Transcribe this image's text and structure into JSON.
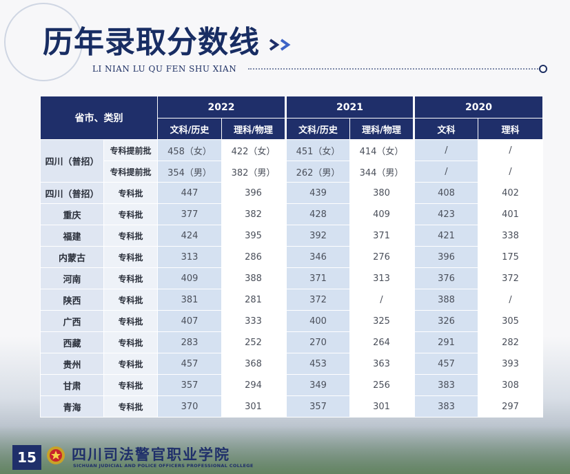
{
  "header": {
    "title": "历年录取分数线",
    "subtitle": "LI NIAN LU QU FEN SHU XIAN"
  },
  "table": {
    "corner_label": "省市、类别",
    "years": [
      "2022",
      "2021",
      "2020"
    ],
    "subheaders": [
      "文科/历史",
      "理科/物理",
      "文科/历史",
      "理科/物理",
      "文科",
      "理科"
    ],
    "group_province": "四川（普招）",
    "group_rows": [
      {
        "category": "专科提前批",
        "values": [
          "458（女）",
          "422（女）",
          "451（女）",
          "414（女）",
          "/",
          "/"
        ]
      },
      {
        "category": "专科提前批",
        "values": [
          "354（男）",
          "382（男）",
          "262（男）",
          "344（男）",
          "/",
          "/"
        ]
      }
    ],
    "rows": [
      {
        "province": "四川（普招）",
        "category": "专科批",
        "values": [
          "447",
          "396",
          "439",
          "380",
          "408",
          "402"
        ]
      },
      {
        "province": "重庆",
        "category": "专科批",
        "values": [
          "377",
          "382",
          "428",
          "409",
          "423",
          "401"
        ]
      },
      {
        "province": "福建",
        "category": "专科批",
        "values": [
          "424",
          "395",
          "392",
          "371",
          "421",
          "338"
        ]
      },
      {
        "province": "内蒙古",
        "category": "专科批",
        "values": [
          "313",
          "286",
          "346",
          "276",
          "396",
          "175"
        ]
      },
      {
        "province": "河南",
        "category": "专科批",
        "values": [
          "409",
          "388",
          "371",
          "313",
          "376",
          "372"
        ]
      },
      {
        "province": "陕西",
        "category": "专科批",
        "values": [
          "381",
          "281",
          "372",
          "/",
          "388",
          "/"
        ]
      },
      {
        "province": "广西",
        "category": "专科批",
        "values": [
          "407",
          "333",
          "400",
          "325",
          "326",
          "305"
        ]
      },
      {
        "province": "西藏",
        "category": "专科批",
        "values": [
          "283",
          "252",
          "270",
          "264",
          "291",
          "282"
        ]
      },
      {
        "province": "贵州",
        "category": "专科批",
        "values": [
          "457",
          "368",
          "453",
          "363",
          "457",
          "393"
        ]
      },
      {
        "province": "甘肃",
        "category": "专科批",
        "values": [
          "357",
          "294",
          "349",
          "256",
          "383",
          "308"
        ]
      },
      {
        "province": "青海",
        "category": "专科批",
        "values": [
          "370",
          "301",
          "357",
          "301",
          "383",
          "297"
        ]
      }
    ]
  },
  "footer": {
    "page_number": "15",
    "school_name_cn": "四川司法警官职业学院",
    "school_name_en": "SICHUAN JUDICIAL AND POLICE OFFICERS PROFESSIONAL COLLEGE"
  },
  "colors": {
    "navy": "#1f2f6a",
    "cell_blue": "#d5e1f1",
    "cell_white": "#ffffff"
  }
}
